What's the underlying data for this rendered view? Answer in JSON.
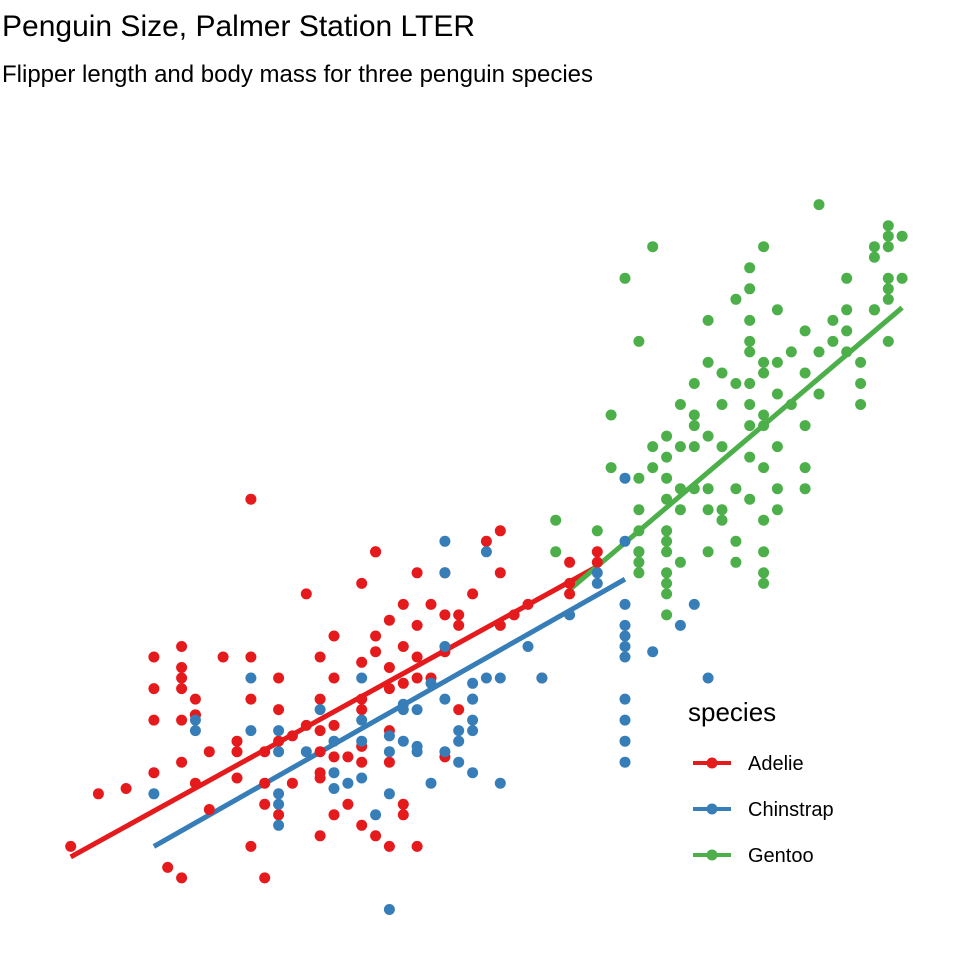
{
  "chart_data": {
    "type": "scatter",
    "title": "Penguin Size, Palmer Station LTER",
    "subtitle": "Flipper length and body mass for three penguin species",
    "xlabel": "",
    "ylabel": "",
    "xlim": [
      170,
      233
    ],
    "ylim": [
      2650,
      6400
    ],
    "grid": false,
    "legend": {
      "title": "species",
      "placement": "right"
    },
    "series": [
      {
        "name": "Adelie",
        "color": "#E41A1C",
        "trend": [
          [
            172,
            2950
          ],
          [
            210,
            4330
          ]
        ],
        "points": [
          [
            172,
            3000
          ],
          [
            174,
            3250
          ],
          [
            176,
            3275
          ],
          [
            178,
            3600
          ],
          [
            178,
            3900
          ],
          [
            178,
            3750
          ],
          [
            178,
            3350
          ],
          [
            179,
            2900
          ],
          [
            180,
            3400
          ],
          [
            180,
            3600
          ],
          [
            180,
            3750
          ],
          [
            180,
            3950
          ],
          [
            180,
            3850
          ],
          [
            180,
            3800
          ],
          [
            180,
            2850
          ],
          [
            181,
            3625
          ],
          [
            181,
            3625
          ],
          [
            181,
            3700
          ],
          [
            181,
            3300
          ],
          [
            182,
            3450
          ],
          [
            182,
            3175
          ],
          [
            183,
            3900
          ],
          [
            184,
            3450
          ],
          [
            184,
            3325
          ],
          [
            184,
            3500
          ],
          [
            185,
            4650
          ],
          [
            185,
            3700
          ],
          [
            185,
            3900
          ],
          [
            185,
            3000
          ],
          [
            186,
            3300
          ],
          [
            186,
            3200
          ],
          [
            186,
            3450
          ],
          [
            186,
            2850
          ],
          [
            187,
            3800
          ],
          [
            187,
            3650
          ],
          [
            187,
            3500
          ],
          [
            187,
            3150
          ],
          [
            188,
            3525
          ],
          [
            188,
            3300
          ],
          [
            189,
            3575
          ],
          [
            189,
            4200
          ],
          [
            190,
            3900
          ],
          [
            190,
            3450
          ],
          [
            190,
            3050
          ],
          [
            190,
            3350
          ],
          [
            190,
            3550
          ],
          [
            190,
            3700
          ],
          [
            190,
            3325
          ],
          [
            191,
            3425
          ],
          [
            191,
            3150
          ],
          [
            191,
            3800
          ],
          [
            191,
            4000
          ],
          [
            191,
            3575
          ],
          [
            192,
            3200
          ],
          [
            192,
            3425
          ],
          [
            193,
            4250
          ],
          [
            193,
            3650
          ],
          [
            193,
            3475
          ],
          [
            193,
            3400
          ],
          [
            193,
            3700
          ],
          [
            193,
            3875
          ],
          [
            193,
            3100
          ],
          [
            194,
            4400
          ],
          [
            194,
            4400
          ],
          [
            194,
            4000
          ],
          [
            194,
            3925
          ],
          [
            194,
            3050
          ],
          [
            195,
            3850
          ],
          [
            195,
            3750
          ],
          [
            195,
            4075
          ],
          [
            195,
            3550
          ],
          [
            195,
            3400
          ],
          [
            195,
            3000
          ],
          [
            196,
            4150
          ],
          [
            196,
            3150
          ],
          [
            196,
            3200
          ],
          [
            196,
            3775
          ],
          [
            196,
            3950
          ],
          [
            197,
            4300
          ],
          [
            197,
            4050
          ],
          [
            197,
            3800
          ],
          [
            197,
            3900
          ],
          [
            197,
            3000
          ],
          [
            198,
            4150
          ],
          [
            198,
            3800
          ],
          [
            199,
            4300
          ],
          [
            199,
            4100
          ],
          [
            199,
            3925
          ],
          [
            199,
            3425
          ],
          [
            200,
            4100
          ],
          [
            200,
            4050
          ],
          [
            200,
            3650
          ],
          [
            201,
            4200
          ],
          [
            202,
            4450
          ],
          [
            203,
            4050
          ],
          [
            203,
            4500
          ],
          [
            203,
            4300
          ],
          [
            204,
            4100
          ],
          [
            205,
            4150
          ],
          [
            206,
            3800
          ],
          [
            208,
            4350
          ],
          [
            208,
            4200
          ],
          [
            208,
            4250
          ],
          [
            210,
            4350
          ],
          [
            210,
            4400
          ]
        ]
      },
      {
        "name": "Chinstrap",
        "color": "#377EB8",
        "trend": [
          [
            178,
            3000
          ],
          [
            212,
            4270
          ]
        ],
        "points": [
          [
            178,
            3250
          ],
          [
            181,
            3600
          ],
          [
            181,
            3550
          ],
          [
            185,
            3550
          ],
          [
            185,
            3800
          ],
          [
            187,
            3450
          ],
          [
            187,
            3550
          ],
          [
            187,
            3250
          ],
          [
            187,
            3200
          ],
          [
            187,
            3100
          ],
          [
            189,
            3450
          ],
          [
            190,
            3650
          ],
          [
            191,
            3500
          ],
          [
            191,
            3275
          ],
          [
            191,
            3350
          ],
          [
            192,
            3300
          ],
          [
            193,
            3500
          ],
          [
            193,
            3600
          ],
          [
            193,
            3325
          ],
          [
            193,
            3800
          ],
          [
            194,
            3150
          ],
          [
            195,
            3450
          ],
          [
            195,
            3250
          ],
          [
            195,
            2700
          ],
          [
            195,
            3525
          ],
          [
            196,
            3500
          ],
          [
            196,
            3675
          ],
          [
            196,
            3650
          ],
          [
            197,
            3475
          ],
          [
            197,
            3450
          ],
          [
            197,
            3650
          ],
          [
            198,
            3300
          ],
          [
            198,
            3775
          ],
          [
            199,
            3700
          ],
          [
            199,
            3950
          ],
          [
            199,
            4450
          ],
          [
            199,
            4300
          ],
          [
            199,
            3450
          ],
          [
            200,
            3550
          ],
          [
            200,
            3400
          ],
          [
            200,
            3500
          ],
          [
            201,
            3700
          ],
          [
            201,
            3600
          ],
          [
            201,
            3700
          ],
          [
            201,
            3350
          ],
          [
            201,
            3775
          ],
          [
            201,
            3550
          ],
          [
            202,
            4400
          ],
          [
            202,
            3800
          ],
          [
            203,
            3300
          ],
          [
            203,
            3800
          ],
          [
            205,
            3950
          ],
          [
            206,
            3800
          ],
          [
            208,
            4100
          ],
          [
            210,
            4300
          ],
          [
            210,
            4250
          ],
          [
            212,
            3950
          ],
          [
            212,
            4050
          ],
          [
            212,
            4450
          ],
          [
            212,
            4750
          ],
          [
            212,
            3400
          ],
          [
            212,
            3500
          ],
          [
            212,
            3600
          ],
          [
            212,
            3700
          ],
          [
            212,
            3900
          ],
          [
            212,
            4000
          ],
          [
            212,
            4150
          ],
          [
            213,
            4400
          ],
          [
            214,
            3925
          ],
          [
            216,
            4050
          ],
          [
            217,
            4150
          ],
          [
            218,
            3800
          ]
        ]
      },
      {
        "name": "Gentoo",
        "color": "#4DAF4A",
        "trend": [
          [
            208,
            4220
          ],
          [
            232,
            5560
          ]
        ],
        "points": [
          [
            207,
            4550
          ],
          [
            207,
            4400
          ],
          [
            210,
            4500
          ],
          [
            211,
            4800
          ],
          [
            211,
            5050
          ],
          [
            212,
            5700
          ],
          [
            213,
            5400
          ],
          [
            213,
            4350
          ],
          [
            213,
            4300
          ],
          [
            213,
            4400
          ],
          [
            213,
            4500
          ],
          [
            213,
            4600
          ],
          [
            213,
            4750
          ],
          [
            214,
            5850
          ],
          [
            214,
            4900
          ],
          [
            214,
            4800
          ],
          [
            215,
            4650
          ],
          [
            215,
            4250
          ],
          [
            215,
            4100
          ],
          [
            215,
            4200
          ],
          [
            215,
            4300
          ],
          [
            215,
            4400
          ],
          [
            215,
            4450
          ],
          [
            215,
            4500
          ],
          [
            215,
            4750
          ],
          [
            215,
            4850
          ],
          [
            215,
            4950
          ],
          [
            216,
            4350
          ],
          [
            216,
            4600
          ],
          [
            216,
            4700
          ],
          [
            216,
            4900
          ],
          [
            216,
            5100
          ],
          [
            217,
            4700
          ],
          [
            217,
            4900
          ],
          [
            217,
            5000
          ],
          [
            217,
            5050
          ],
          [
            217,
            5200
          ],
          [
            218,
            4400
          ],
          [
            218,
            4600
          ],
          [
            218,
            4950
          ],
          [
            218,
            5300
          ],
          [
            218,
            5500
          ],
          [
            218,
            4700
          ],
          [
            219,
            5250
          ],
          [
            219,
            5100
          ],
          [
            219,
            4900
          ],
          [
            219,
            4550
          ],
          [
            219,
            4600
          ],
          [
            220,
            5200
          ],
          [
            220,
            4450
          ],
          [
            220,
            4700
          ],
          [
            220,
            4350
          ],
          [
            220,
            5600
          ],
          [
            221,
            4650
          ],
          [
            221,
            4850
          ],
          [
            221,
            5000
          ],
          [
            221,
            5100
          ],
          [
            221,
            5200
          ],
          [
            221,
            5350
          ],
          [
            221,
            5500
          ],
          [
            221,
            5650
          ],
          [
            221,
            5750
          ],
          [
            221,
            5400
          ],
          [
            222,
            5850
          ],
          [
            222,
            5300
          ],
          [
            222,
            4800
          ],
          [
            222,
            4300
          ],
          [
            222,
            4550
          ],
          [
            222,
            5000
          ],
          [
            222,
            5050
          ],
          [
            222,
            5250
          ],
          [
            222,
            4250
          ],
          [
            222,
            4400
          ],
          [
            223,
            5550
          ],
          [
            223,
            5300
          ],
          [
            223,
            5150
          ],
          [
            223,
            4900
          ],
          [
            223,
            4700
          ],
          [
            223,
            4600
          ],
          [
            224,
            5350
          ],
          [
            224,
            5100
          ],
          [
            225,
            5450
          ],
          [
            225,
            5250
          ],
          [
            225,
            5000
          ],
          [
            225,
            4800
          ],
          [
            225,
            4700
          ],
          [
            226,
            6050
          ],
          [
            226,
            5150
          ],
          [
            226,
            5350
          ],
          [
            227,
            5400
          ],
          [
            227,
            5500
          ],
          [
            228,
            5350
          ],
          [
            228,
            5450
          ],
          [
            228,
            5550
          ],
          [
            228,
            5700
          ],
          [
            229,
            5200
          ],
          [
            229,
            5300
          ],
          [
            229,
            5100
          ],
          [
            230,
            5550
          ],
          [
            230,
            5850
          ],
          [
            230,
            5550
          ],
          [
            230,
            5800
          ],
          [
            231,
            5400
          ],
          [
            231,
            5600
          ],
          [
            231,
            5700
          ],
          [
            231,
            5900
          ],
          [
            231,
            5950
          ],
          [
            231,
            5650
          ],
          [
            231,
            5850
          ],
          [
            232,
            5900
          ],
          [
            232,
            5700
          ]
        ]
      }
    ]
  }
}
